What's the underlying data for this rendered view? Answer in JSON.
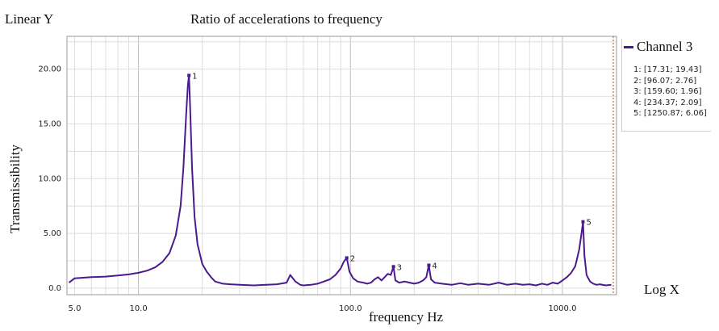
{
  "chart_data": {
    "type": "line",
    "title": "Ratio of accelerations to frequency",
    "xlabel": "frequency Hz",
    "ylabel": "Transmissibility",
    "y_scale_label": "Linear Y",
    "x_scale_label": "Log X",
    "x_scale": "log",
    "xlim": [
      4.6,
      1800
    ],
    "ylim": [
      -0.6,
      23
    ],
    "grid": true,
    "x_ticks": [
      {
        "value": 5,
        "label": "5.0"
      },
      {
        "value": 10,
        "label": "10.0"
      },
      {
        "value": 100,
        "label": "100.0"
      },
      {
        "value": 1000,
        "label": "1000.0"
      }
    ],
    "y_ticks": [
      {
        "value": 0,
        "label": "0.0"
      },
      {
        "value": 5,
        "label": "5.00"
      },
      {
        "value": 10,
        "label": "10.00"
      },
      {
        "value": 15,
        "label": "15.00"
      },
      {
        "value": 20,
        "label": "20.00"
      }
    ],
    "legend": {
      "position": "top-right",
      "entry": "Channel 3"
    },
    "series": [
      {
        "name": "Channel 3",
        "color": "#4b1a8c",
        "x": [
          4.7,
          5,
          6,
          7,
          8,
          9,
          10,
          11,
          12,
          13,
          14,
          15,
          15.8,
          16.3,
          16.8,
          17.1,
          17.31,
          17.5,
          17.9,
          18.4,
          19,
          20,
          21,
          22,
          23,
          25,
          27,
          30,
          35,
          40,
          45,
          50,
          52,
          55,
          58,
          60,
          65,
          70,
          75,
          80,
          85,
          90,
          93,
          96.07,
          99,
          103,
          108,
          115,
          120,
          125,
          130,
          135,
          140,
          145,
          150,
          155,
          159.6,
          163,
          170,
          180,
          190,
          200,
          210,
          220,
          228,
          234.37,
          240,
          250,
          270,
          300,
          330,
          360,
          400,
          450,
          500,
          550,
          600,
          650,
          700,
          750,
          800,
          850,
          900,
          950,
          1000,
          1050,
          1100,
          1150,
          1200,
          1230,
          1250.87,
          1270,
          1300,
          1350,
          1400,
          1450,
          1500,
          1600,
          1700
        ],
        "y": [
          0.5,
          0.9,
          1.0,
          1.05,
          1.15,
          1.25,
          1.4,
          1.6,
          1.9,
          2.4,
          3.2,
          4.8,
          7.5,
          11,
          16,
          18.5,
          19.43,
          17,
          11,
          6.5,
          4,
          2.2,
          1.5,
          1.0,
          0.6,
          0.4,
          0.35,
          0.3,
          0.25,
          0.3,
          0.35,
          0.5,
          1.2,
          0.6,
          0.3,
          0.25,
          0.3,
          0.4,
          0.6,
          0.8,
          1.2,
          1.8,
          2.4,
          2.76,
          1.5,
          0.9,
          0.6,
          0.5,
          0.4,
          0.5,
          0.8,
          1.0,
          0.7,
          1.0,
          1.3,
          1.2,
          1.96,
          0.7,
          0.5,
          0.6,
          0.5,
          0.4,
          0.5,
          0.7,
          1.0,
          2.09,
          0.8,
          0.5,
          0.4,
          0.3,
          0.45,
          0.3,
          0.4,
          0.3,
          0.5,
          0.3,
          0.4,
          0.3,
          0.35,
          0.25,
          0.4,
          0.3,
          0.5,
          0.4,
          0.7,
          1.0,
          1.4,
          2.0,
          3.5,
          5.0,
          6.06,
          3.0,
          1.2,
          0.6,
          0.4,
          0.3,
          0.35,
          0.25,
          0.3
        ]
      }
    ],
    "annotations": [
      {
        "id": "1",
        "x": 17.31,
        "y": 19.43,
        "text": "1: [17.31; 19.43]"
      },
      {
        "id": "2",
        "x": 96.07,
        "y": 2.76,
        "text": "2: [96.07; 2.76]"
      },
      {
        "id": "3",
        "x": 159.6,
        "y": 1.96,
        "text": "3: [159.60; 1.96]"
      },
      {
        "id": "4",
        "x": 234.37,
        "y": 2.09,
        "text": "4: [234.37; 2.09]"
      },
      {
        "id": "5",
        "x": 1250.87,
        "y": 6.06,
        "text": "5: [1250.87; 6.06]"
      }
    ]
  }
}
